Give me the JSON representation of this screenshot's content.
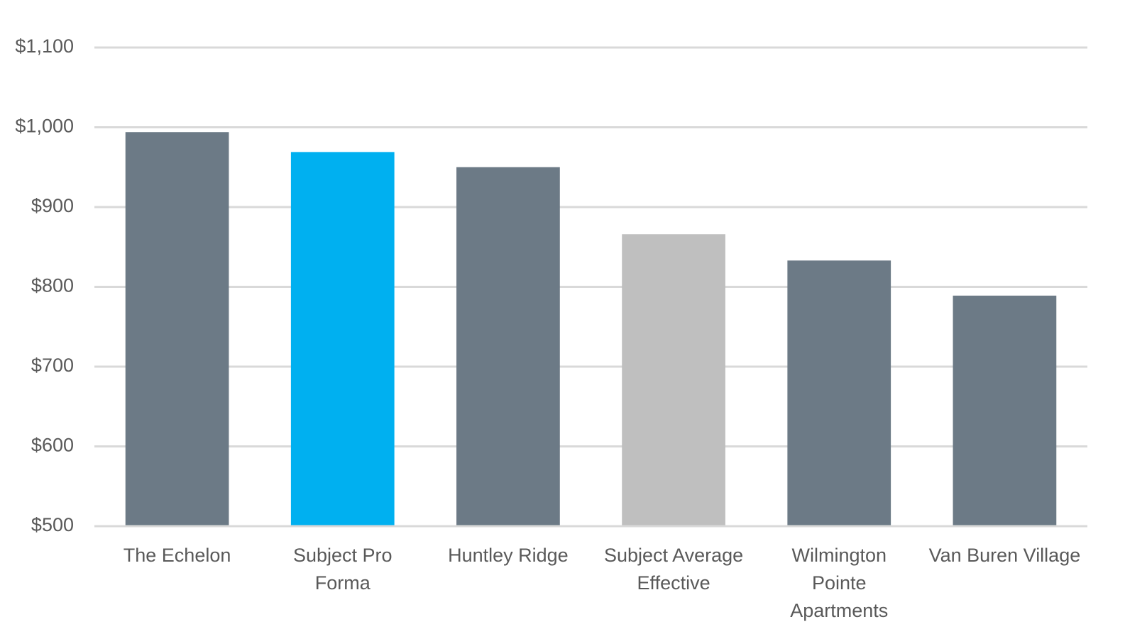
{
  "chart_data": {
    "type": "bar",
    "categories": [
      "The Echelon",
      "Subject Pro\nForma",
      "Huntley Ridge",
      "Subject Average\nEffective",
      "Wilmington\nPointe\nApartments",
      "Van Buren Village"
    ],
    "values": [
      994,
      969,
      950,
      866,
      833,
      789
    ],
    "colors": [
      "#6c7a86",
      "#00b0f0",
      "#6c7a86",
      "#bfbfbf",
      "#6c7a86",
      "#6c7a86"
    ],
    "ylim": [
      500,
      1100
    ],
    "yticks": [
      {
        "value": 500,
        "label": "$500"
      },
      {
        "value": 600,
        "label": "$600"
      },
      {
        "value": 700,
        "label": "$700"
      },
      {
        "value": 800,
        "label": "$800"
      },
      {
        "value": 900,
        "label": "$900"
      },
      {
        "value": 1000,
        "label": "$1,000"
      },
      {
        "value": 1100,
        "label": "$1,100"
      }
    ],
    "grid": true
  }
}
